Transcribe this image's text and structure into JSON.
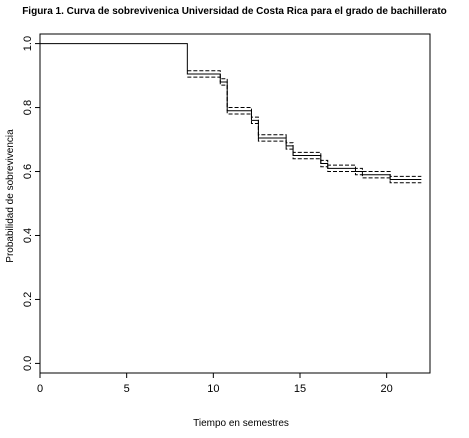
{
  "chart_data": {
    "type": "line",
    "title": "Figura 1. Curva de sobrevivenica Universidad de Costa Rica para el grado de bachillerato",
    "xlabel": "Tiempo en semestres",
    "ylabel": "Probabilidad de sobrevivencia",
    "xlim": [
      0,
      22.5
    ],
    "ylim": [
      -0.03,
      1.03
    ],
    "xticks": [
      0,
      5,
      10,
      15,
      20
    ],
    "yticks": [
      0.0,
      0.2,
      0.4,
      0.6,
      0.8,
      1.0
    ],
    "xtick_labels": [
      "0",
      "5",
      "10",
      "15",
      "20"
    ],
    "ytick_labels": [
      "0.0",
      "0.2",
      "0.4",
      "0.6",
      "0.8",
      "1.0"
    ],
    "grid": false,
    "step": true,
    "series": [
      {
        "style": "solid",
        "x": [
          0,
          8.5,
          10.4,
          10.8,
          12.2,
          12.6,
          14.2,
          14.6,
          16.2,
          16.6,
          18.2,
          18.6,
          20.2,
          22.0
        ],
        "y": [
          1.0,
          0.905,
          0.88,
          0.79,
          0.76,
          0.705,
          0.68,
          0.65,
          0.625,
          0.61,
          0.6,
          0.59,
          0.575,
          0.575
        ]
      },
      {
        "style": "dashed",
        "x": [
          8.5,
          10.4,
          10.8,
          12.2,
          12.6,
          14.2,
          14.6,
          16.2,
          16.6,
          18.2,
          18.6,
          20.2,
          22.0
        ],
        "y": [
          0.915,
          0.89,
          0.8,
          0.77,
          0.715,
          0.69,
          0.66,
          0.635,
          0.62,
          0.61,
          0.6,
          0.585,
          0.585
        ]
      },
      {
        "style": "dashed",
        "x": [
          8.5,
          10.4,
          10.8,
          12.2,
          12.6,
          14.2,
          14.6,
          16.2,
          16.6,
          18.2,
          18.6,
          20.2,
          22.0
        ],
        "y": [
          0.895,
          0.87,
          0.78,
          0.75,
          0.695,
          0.67,
          0.64,
          0.615,
          0.6,
          0.59,
          0.58,
          0.565,
          0.565
        ]
      }
    ]
  }
}
